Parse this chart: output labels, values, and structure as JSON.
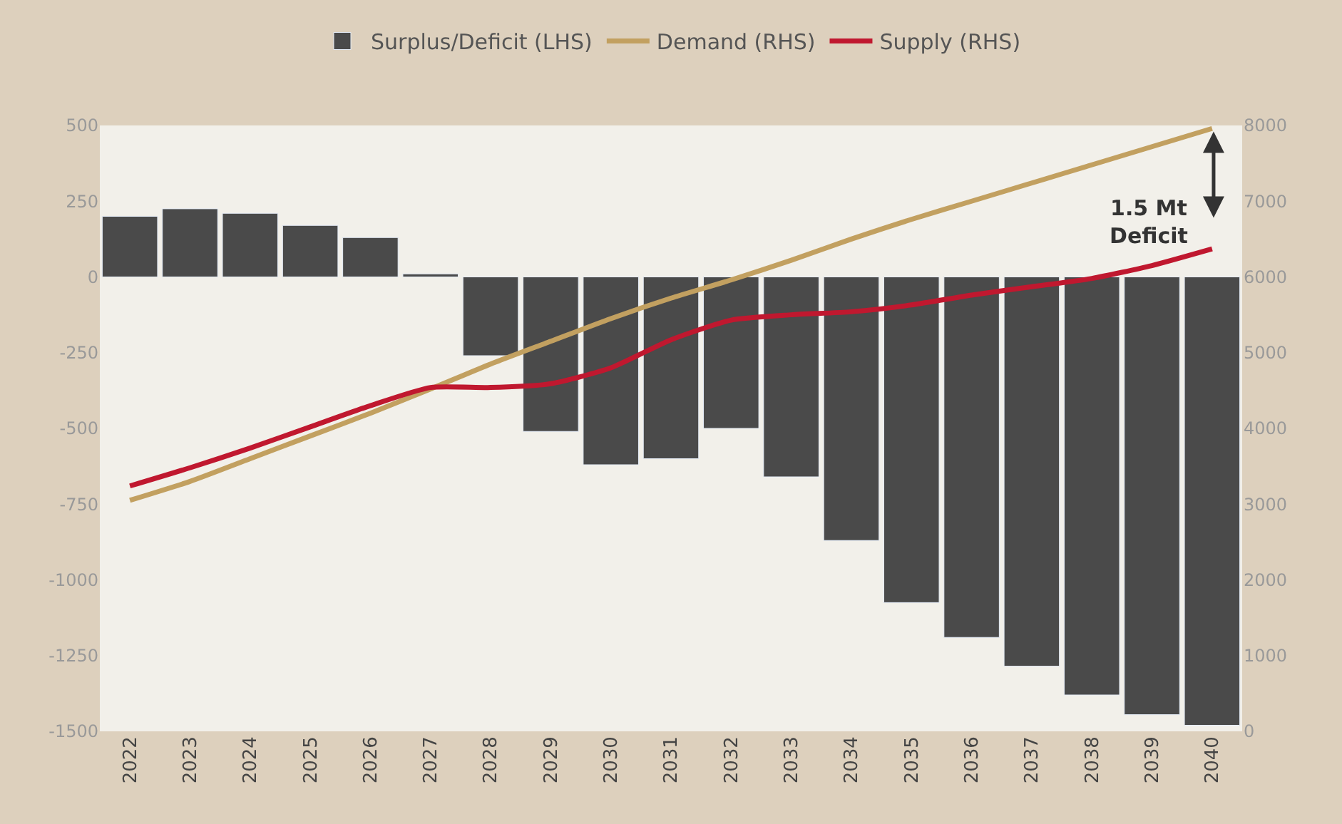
{
  "chart_data": {
    "type": "bar",
    "categories": [
      "2022",
      "2023",
      "2024",
      "2025",
      "2026",
      "2027",
      "2028",
      "2029",
      "2030",
      "2031",
      "2032",
      "2033",
      "2034",
      "2035",
      "2036",
      "2037",
      "2038",
      "2039",
      "2040"
    ],
    "series": [
      {
        "name": "Surplus/Deficit (LHS)",
        "color": "#4a4a4a",
        "values": [
          200,
          225,
          210,
          170,
          130,
          10,
          -260,
          -510,
          -620,
          -600,
          -500,
          -660,
          -870,
          -1075,
          -1190,
          -1285,
          -1380,
          -1445,
          -1480
        ]
      },
      {
        "name": "Demand (RHS)",
        "type": "line",
        "axis": "y2",
        "color": "#c2a060",
        "values": [
          3050,
          3300,
          3600,
          3900,
          4200,
          4520,
          4850,
          5150,
          5450,
          5720,
          5960,
          6220,
          6500,
          6760,
          7000,
          7240,
          7480,
          7720,
          7960
        ]
      },
      {
        "name": "Supply (RHS)",
        "type": "line",
        "axis": "y2",
        "color": "#c0182f",
        "values": [
          3240,
          3480,
          3740,
          4020,
          4300,
          4540,
          4540,
          4590,
          4800,
          5170,
          5430,
          5500,
          5540,
          5630,
          5760,
          5870,
          5980,
          6150,
          6370
        ]
      }
    ],
    "ylim": [
      -1500,
      500
    ],
    "yticks": [
      -1500,
      -1250,
      -1000,
      -750,
      -500,
      -250,
      0,
      250,
      500
    ],
    "y2lim": [
      0,
      8000
    ],
    "y2ticks": [
      0,
      1000,
      2000,
      3000,
      4000,
      5000,
      6000,
      7000,
      8000
    ],
    "annotations": [
      "1.5 Mt\nDeficit"
    ],
    "legend": "top",
    "marker": "none",
    "line_style": "solid",
    "grid": false
  }
}
